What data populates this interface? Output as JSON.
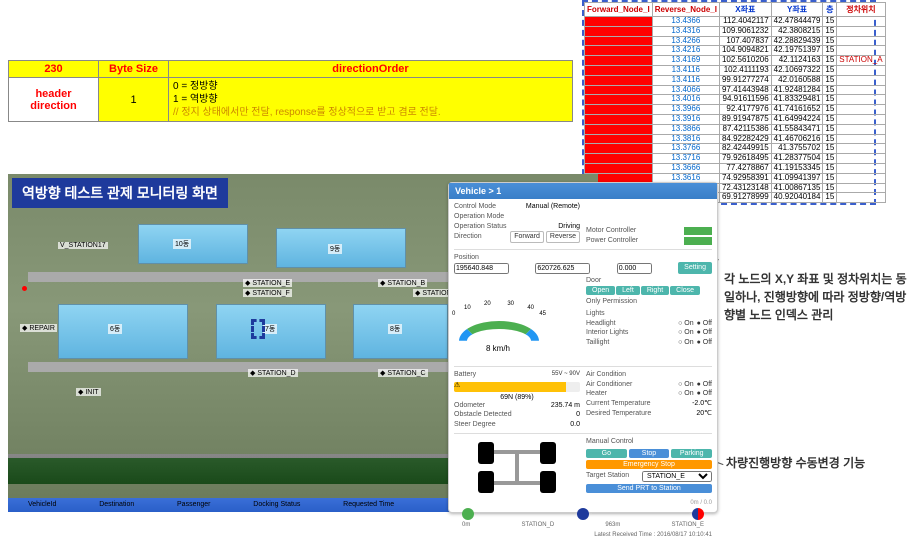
{
  "header_table": {
    "cols": [
      "230",
      "Byte Size",
      "directionOrder"
    ],
    "row_label": "header direction",
    "byte_size": "1",
    "desc_lines": [
      "0 = 정방향",
      "1 = 역방향",
      "// 정지 상태에서만 전달, response를 정상적으로 받고 겸로 전달."
    ]
  },
  "monitor_title": "역방향 테스트 관제 모니터링 화면",
  "node_table": {
    "headers": [
      "Forward_Node_I",
      "Reverse_Node_I",
      "X좌표",
      "Y좌표",
      "층",
      "정차위치"
    ],
    "rows": [
      [
        "",
        "13.4366",
        "112.4042117",
        "42.47844479",
        "15",
        ""
      ],
      [
        "",
        "13.4316",
        "109.9061232",
        "42.3808215",
        "15",
        ""
      ],
      [
        "",
        "13.4266",
        "107.407837",
        "42.28829439",
        "15",
        ""
      ],
      [
        "",
        "13.4216",
        "104.9094821",
        "42.19751397",
        "15",
        ""
      ],
      [
        "",
        "13.4169",
        "102.5610206",
        "42.1124163",
        "15",
        "STATION_A"
      ],
      [
        "",
        "13.4116",
        "102.4111193",
        "42.10697322",
        "15",
        ""
      ],
      [
        "",
        "13.4116",
        "99.91277274",
        "42.0160588",
        "15",
        ""
      ],
      [
        "",
        "13.4066",
        "97.41443948",
        "41.92481284",
        "15",
        ""
      ],
      [
        "",
        "13.4016",
        "94.91611596",
        "41.83329481",
        "15",
        ""
      ],
      [
        "",
        "13.3966",
        "92.4177976",
        "41.74161652",
        "15",
        ""
      ],
      [
        "",
        "13.3916",
        "89.91947875",
        "41.64994224",
        "15",
        ""
      ],
      [
        "",
        "13.3866",
        "87.42115386",
        "41.55843471",
        "15",
        ""
      ],
      [
        "",
        "13.3816",
        "84.92282429",
        "41.46706216",
        "15",
        ""
      ],
      [
        "",
        "13.3766",
        "82.42449915",
        "41.3755702",
        "15",
        ""
      ],
      [
        "",
        "13.3716",
        "79.92618495",
        "41.28377504",
        "15",
        ""
      ],
      [
        "",
        "13.3666",
        "77.4278867",
        "41.19153345",
        "15",
        ""
      ],
      [
        "",
        "13.3616",
        "74.92958391",
        "41.09941397",
        "15",
        ""
      ],
      [
        "",
        "13.3566",
        "72.43123148",
        "41.00867135",
        "15",
        ""
      ],
      [
        "",
        "13.3516",
        "69.91278999",
        "40.92040184",
        "15",
        ""
      ]
    ]
  },
  "annot1": "각 노드의 X,Y 좌표 및 정차위치는 동일하나, 진행방향에 따라 정방향/역방향별 노드 인덱스 관리",
  "annot2": "차량진행방향 수동변경 기능",
  "bottom_bar_labels": [
    "VehicleId",
    "Destination",
    "Passenger",
    "Docking Status",
    "Requested Time"
  ],
  "stations": [
    "STATION_E",
    "STATION_F",
    "STATION_B",
    "STATION_A",
    "STATION_D",
    "STATION_C",
    "INIT",
    "REPAIR",
    "V_STATION17"
  ],
  "buildings": [
    "10동",
    "9동",
    "6동",
    "7동",
    "8동"
  ],
  "vpanel": {
    "title": "Vehicle > 1",
    "control_mode": {
      "lbl": "Control Mode",
      "val": "Manual (Remote)"
    },
    "op_mode": {
      "lbl": "Operation Mode",
      "val": ""
    },
    "op_status": {
      "lbl": "Operation Status",
      "val": "Driving"
    },
    "direction": {
      "lbl": "Direction",
      "fwd": "Forward",
      "rev": "Reverse"
    },
    "position": {
      "lbl": "Position",
      "x": "195640.848",
      "y": "620726.625",
      "z": "0.000"
    },
    "pos_btn": "Setting",
    "motor": {
      "lbl": "Motor Controller"
    },
    "power": {
      "lbl": "Power Controller"
    },
    "door": {
      "lbl": "Door",
      "btns": [
        "Open",
        "Left",
        "Right",
        "Close"
      ]
    },
    "permission": {
      "lbl": "Only Permission"
    },
    "lights": {
      "lbl": "Lights"
    },
    "headlight": {
      "lbl": "Headlight"
    },
    "interior": {
      "lbl": "Interior Lights"
    },
    "taillight": {
      "lbl": "Taillight"
    },
    "battery": {
      "lbl": "Battery",
      "val": "69N (89%)"
    },
    "odo": {
      "lbl": "Odometer",
      "val": "235.74 m"
    },
    "obstacle": {
      "lbl": "Obstacle Detected",
      "val": "0"
    },
    "steer": {
      "lbl": "Steer Degree",
      "val": "0.0"
    },
    "aircon": {
      "lbl": "Air Condition"
    },
    "ac": {
      "lbl": "Air Conditioner"
    },
    "heater": {
      "lbl": "Heater"
    },
    "cur_temp": {
      "lbl": "Current Temperature",
      "val": "-2.0℃"
    },
    "des_temp": {
      "lbl": "Desired Temperature",
      "val": "20℃"
    },
    "manual": {
      "lbl": "Manual Control",
      "btns": [
        "Go",
        "Stop",
        "Parking"
      ]
    },
    "em_stop": "Emergency Stop",
    "target": {
      "lbl": "Target Station",
      "val": "STATION_E"
    },
    "send": "Send PRT to Station",
    "gauge": {
      "speed": "8 km/h",
      "ticks": [
        "0",
        "10",
        "20",
        "30",
        "40",
        "45"
      ]
    },
    "dots": {
      "labels": [
        "0m",
        "STATION_D",
        "963m",
        "STATION_E"
      ],
      "sub": "0m / 0.0"
    },
    "footer": {
      "lbl": "Latest Received Time",
      "val": "2016/08/17 10:10:41"
    },
    "on": "On",
    "off": "Off",
    "battery_range": "55V ~ 90V"
  }
}
